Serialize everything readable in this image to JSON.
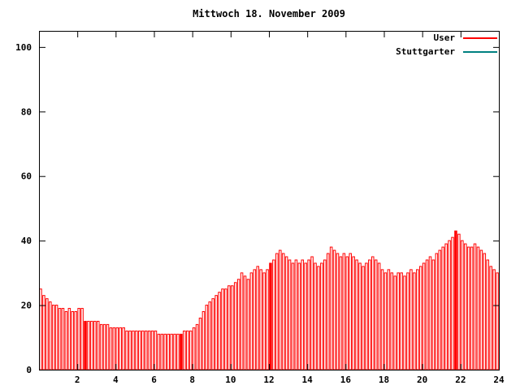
{
  "chart_data": {
    "type": "bar",
    "title": "Mittwoch 18. November 2009",
    "xlabel": "",
    "ylabel": "",
    "xlim": [
      0,
      24
    ],
    "ylim": [
      0,
      105
    ],
    "x_ticks": [
      2,
      4,
      6,
      8,
      10,
      12,
      14,
      16,
      18,
      20,
      22,
      24
    ],
    "y_ticks": [
      0,
      20,
      40,
      60,
      80,
      100
    ],
    "grid": false,
    "legend_position": "top-right",
    "bar_interval_minutes": 10,
    "series": [
      {
        "name": "User",
        "color": "#ff0000",
        "values": [
          25,
          23,
          22,
          21,
          20,
          20,
          19,
          19,
          18,
          19,
          18,
          18,
          19,
          19,
          15,
          15,
          15,
          15,
          15,
          14,
          14,
          14,
          13,
          13,
          13,
          13,
          13,
          12,
          12,
          12,
          12,
          12,
          12,
          12,
          12,
          12,
          12,
          11,
          11,
          11,
          11,
          11,
          11,
          11,
          11,
          12,
          12,
          12,
          13,
          14,
          16,
          18,
          20,
          21,
          22,
          23,
          24,
          25,
          25,
          26,
          26,
          27,
          28,
          30,
          29,
          28,
          30,
          31,
          32,
          31,
          30,
          31,
          33,
          34,
          36,
          37,
          36,
          35,
          34,
          33,
          34,
          33,
          34,
          33,
          34,
          35,
          33,
          32,
          33,
          34,
          36,
          38,
          37,
          36,
          35,
          36,
          35,
          36,
          35,
          34,
          33,
          32,
          33,
          34,
          35,
          34,
          33,
          31,
          30,
          31,
          30,
          29,
          30,
          30,
          29,
          30,
          31,
          30,
          31,
          32,
          33,
          34,
          35,
          34,
          36,
          37,
          38,
          39,
          40,
          41,
          43,
          42,
          40,
          39,
          38,
          38,
          39,
          38,
          37,
          36,
          34,
          32,
          31,
          30
        ],
        "solid_indices": [
          14,
          44,
          72,
          130
        ]
      },
      {
        "name": "Stuttgarter",
        "color": "#008080",
        "values": []
      }
    ]
  },
  "colors": {
    "axis": "#000000",
    "background": "#ffffff",
    "bar_fill": "#ffffff"
  }
}
